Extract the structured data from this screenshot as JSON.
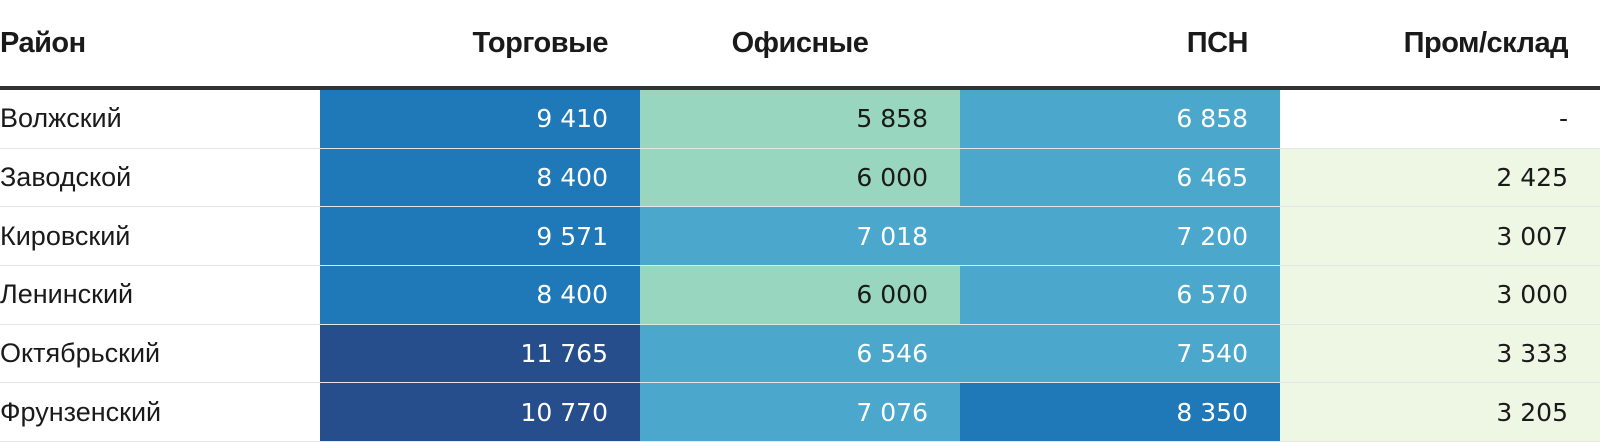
{
  "chart_data": {
    "type": "table",
    "columns": [
      "Район",
      "Торговые",
      "Офисные",
      "ПСН",
      "Пром/склад"
    ],
    "rows": [
      {
        "district": "Волжский",
        "values": [
          "9 410",
          "5 858",
          "6 858",
          "-"
        ]
      },
      {
        "district": "Заводской",
        "values": [
          "8 400",
          "6 000",
          "6 465",
          "2 425"
        ]
      },
      {
        "district": "Кировский",
        "values": [
          "9 571",
          "7 018",
          "7 200",
          "3 007"
        ]
      },
      {
        "district": "Ленинский",
        "values": [
          "8 400",
          "6 000",
          "6 570",
          "3 000"
        ]
      },
      {
        "district": "Октябрьский",
        "values": [
          "11 765",
          "6 546",
          "7 540",
          "3 333"
        ]
      },
      {
        "district": "Фрунзенский",
        "values": [
          "10 770",
          "7 076",
          "8 350",
          "3 205"
        ]
      }
    ],
    "color_scale": [
      {
        "min": 10000,
        "color": "#264d8c",
        "text": "#ffffff"
      },
      {
        "min": 8000,
        "color": "#1f78b8",
        "text": "#ffffff"
      },
      {
        "min": 6400,
        "color": "#4ba8cc",
        "text": "#ffffff"
      },
      {
        "min": 5000,
        "color": "#98d6c0",
        "text": "#1a1a1a"
      },
      {
        "min": 1,
        "color": "#edf7e4",
        "text": "#1a1a1a"
      },
      {
        "min": null,
        "color": "#ffffff",
        "text": "#1a1a1a"
      }
    ]
  }
}
